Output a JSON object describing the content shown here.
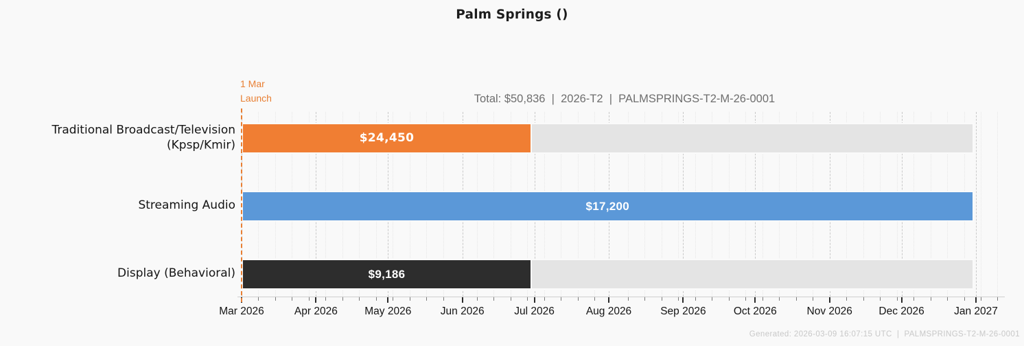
{
  "title": "Palm Springs ()",
  "footer": "Generated: 2026-03-09 16:07:15 UTC  |  PALMSPRINGS-T2-M-26-0001",
  "chart_data": {
    "type": "bar",
    "subtype": "horizontal-timeline-gantt",
    "title": "Palm Springs ()",
    "info_line": "Total: $50,836  |  2026-T2  |  PALMSPRINGS-T2-M-26-0001",
    "total_value": 50836,
    "period": "2026-T2",
    "campaign_id": "PALMSPRINGS-T2-M-26-0001",
    "categories": [
      "Traditional Broadcast/Television (Kpsp/Kmir)",
      "Streaming Audio",
      "Display (Behavioral)"
    ],
    "values": [
      24450,
      17200,
      9186
    ],
    "value_labels": [
      "$24,450",
      "$17,200",
      "$9,186"
    ],
    "rows": [
      {
        "label": "Traditional Broadcast/Television\n(Kpsp/Kmir)",
        "value": 24450,
        "value_label": "$24,450",
        "start": "2026-03-01",
        "end": "2026-06-30",
        "color": "#f07e33"
      },
      {
        "label": "Streaming Audio",
        "value": 17200,
        "value_label": "$17,200",
        "start": "2026-03-01",
        "end": "2026-12-31",
        "color": "#5b98d8"
      },
      {
        "label": "Display (Behavioral)",
        "value": 9186,
        "value_label": "$9,186",
        "start": "2026-03-01",
        "end": "2026-06-30",
        "color": "#2d2d2d"
      }
    ],
    "track": {
      "start": "2026-03-01",
      "end": "2026-12-31",
      "color": "#e4e4e4"
    },
    "x_axis": {
      "grid": true,
      "minor_tick_interval_days": 7,
      "ticks": [
        {
          "date": "2026-03-01",
          "label": "Mar 2026"
        },
        {
          "date": "2026-04-01",
          "label": "Apr 2026"
        },
        {
          "date": "2026-05-01",
          "label": "May 2026"
        },
        {
          "date": "2026-06-01",
          "label": "Jun 2026"
        },
        {
          "date": "2026-07-01",
          "label": "Jul 2026"
        },
        {
          "date": "2026-08-01",
          "label": "Aug 2026"
        },
        {
          "date": "2026-09-01",
          "label": "Sep 2026"
        },
        {
          "date": "2026-10-01",
          "label": "Oct 2026"
        },
        {
          "date": "2026-11-01",
          "label": "Nov 2026"
        },
        {
          "date": "2026-12-01",
          "label": "Dec 2026"
        },
        {
          "date": "2027-01-01",
          "label": "Jan 2027"
        }
      ]
    },
    "launch_line": {
      "date": "2026-03-01",
      "label": "1 Mar\nLaunch",
      "color": "#e87f33"
    },
    "legend": "none",
    "value_text_color": "#ffffff",
    "background_color": "#f9f9f9"
  }
}
